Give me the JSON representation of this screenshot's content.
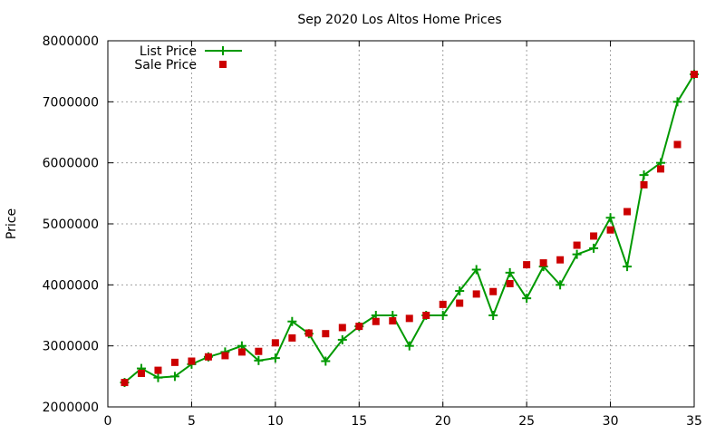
{
  "chart_data": {
    "type": "line",
    "title": "Sep 2020 Los Altos Home Prices",
    "xlabel": "",
    "ylabel": "Price",
    "xlim": [
      0,
      35
    ],
    "ylim": [
      2000000,
      8000000
    ],
    "xticks": [
      0,
      5,
      10,
      15,
      20,
      25,
      30,
      35
    ],
    "yticks": [
      2000000,
      3000000,
      4000000,
      5000000,
      6000000,
      7000000,
      8000000
    ],
    "grid": true,
    "legend_position": "top-left",
    "x": [
      1,
      2,
      3,
      4,
      5,
      6,
      7,
      8,
      9,
      10,
      11,
      12,
      13,
      14,
      15,
      16,
      17,
      18,
      19,
      20,
      21,
      22,
      23,
      24,
      25,
      26,
      27,
      28,
      29,
      30,
      31,
      32,
      33,
      34,
      35
    ],
    "series": [
      {
        "name": "List Price",
        "style": "line-points",
        "marker": "plus",
        "color": "#009900",
        "values": [
          2400000,
          2630000,
          2480000,
          2500000,
          2700000,
          2820000,
          2900000,
          3000000,
          2760000,
          2800000,
          3400000,
          3200000,
          2750000,
          3100000,
          3320000,
          3500000,
          3500000,
          3000000,
          3500000,
          3500000,
          3900000,
          4250000,
          3500000,
          4200000,
          3780000,
          4300000,
          4000000,
          4500000,
          4600000,
          5100000,
          4300000,
          5800000,
          6000000,
          7000000,
          7450000
        ]
      },
      {
        "name": "Sale Price",
        "style": "points",
        "marker": "square",
        "color": "#cc0000",
        "values": [
          2400000,
          2550000,
          2600000,
          2730000,
          2750000,
          2820000,
          2840000,
          2900000,
          2910000,
          3050000,
          3130000,
          3210000,
          3200000,
          3300000,
          3320000,
          3400000,
          3410000,
          3450000,
          3500000,
          3680000,
          3700000,
          3850000,
          3890000,
          4020000,
          4330000,
          4360000,
          4410000,
          4650000,
          4800000,
          4900000,
          5200000,
          5640000,
          5900000,
          6300000,
          7450000
        ]
      }
    ]
  }
}
